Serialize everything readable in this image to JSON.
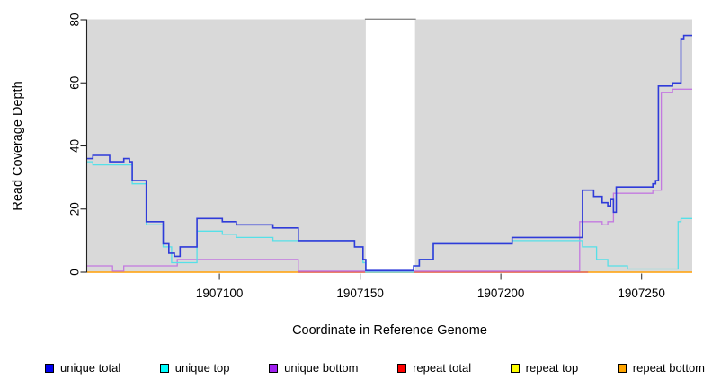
{
  "chart_data": {
    "type": "line",
    "subtype": "step-coverage-plot",
    "title": "",
    "xlabel": "Coordinate in Reference Genome",
    "ylabel": "Read Coverage Depth",
    "xlim": [
      1907053,
      1907268
    ],
    "ylim": [
      0,
      80
    ],
    "x_ticks": [
      1907100,
      1907150,
      1907200,
      1907250
    ],
    "y_ticks": [
      0,
      20,
      40,
      60,
      80
    ],
    "grid": false,
    "legend_position": "bottom",
    "background_color": "#FFFFFF",
    "plot_bg_color": "#D9D9D9",
    "no_data_gap": {
      "from": 1907152,
      "to": 1907169.5,
      "color": "#FFFFFF",
      "top_border_color": "#8A8A8A"
    },
    "axis_color": "#222222",
    "tick_label_color": "#000000",
    "series": [
      {
        "name": "repeat top",
        "color": "#FFFF33",
        "width": 1.2,
        "x_end": 1907268,
        "points": [
          [
            1907053,
            0
          ]
        ]
      },
      {
        "name": "repeat bottom",
        "color": "#FF9E15",
        "width": 1.5,
        "x_end": 1907268,
        "points": [
          [
            1907053,
            0
          ]
        ]
      },
      {
        "name": "repeat total",
        "color": "#DE5664",
        "width": 1.3,
        "x_end": 1907231,
        "points": [
          [
            1907128,
            0
          ]
        ]
      },
      {
        "name": "unique bottom",
        "color": "#C379E0",
        "width": 1.3,
        "x_end": 1907268,
        "points": [
          [
            1907053,
            2
          ],
          [
            1907062,
            0.3
          ],
          [
            1907066,
            2
          ],
          [
            1907085,
            4
          ],
          [
            1907128,
            0.3
          ],
          [
            1907228,
            16
          ],
          [
            1907236,
            15
          ],
          [
            1907238,
            16
          ],
          [
            1907240,
            25
          ],
          [
            1907254,
            26
          ],
          [
            1907257,
            57
          ],
          [
            1907261,
            58
          ]
        ]
      },
      {
        "name": "unique top",
        "color": "#55E0E8",
        "width": 1.3,
        "x_end": 1907268,
        "points": [
          [
            1907053,
            35
          ],
          [
            1907055,
            34
          ],
          [
            1907069,
            28
          ],
          [
            1907074,
            15
          ],
          [
            1907080,
            8
          ],
          [
            1907083,
            3
          ],
          [
            1907092,
            13
          ],
          [
            1907101,
            12
          ],
          [
            1907106,
            11
          ],
          [
            1907119,
            10
          ],
          [
            1907148,
            8
          ],
          [
            1907151,
            3
          ],
          [
            1907152,
            0
          ],
          [
            1907169,
            2
          ],
          [
            1907171,
            4
          ],
          [
            1907176,
            9
          ],
          [
            1907204,
            10
          ],
          [
            1907229,
            8
          ],
          [
            1907234,
            4
          ],
          [
            1907238,
            2
          ],
          [
            1907245,
            1
          ],
          [
            1907263,
            16
          ],
          [
            1907264,
            17
          ]
        ]
      },
      {
        "name": "unique total",
        "color": "#2F3BD9",
        "width": 1.6,
        "x_end": 1907268,
        "points": [
          [
            1907053,
            36
          ],
          [
            1907055,
            37
          ],
          [
            1907061,
            35
          ],
          [
            1907066,
            36
          ],
          [
            1907068,
            35
          ],
          [
            1907069,
            29
          ],
          [
            1907074,
            16
          ],
          [
            1907080,
            9
          ],
          [
            1907082,
            6
          ],
          [
            1907084,
            5
          ],
          [
            1907086,
            8
          ],
          [
            1907092,
            17
          ],
          [
            1907101,
            16
          ],
          [
            1907106,
            15
          ],
          [
            1907119,
            14
          ],
          [
            1907128,
            10
          ],
          [
            1907148,
            8
          ],
          [
            1907151,
            4
          ],
          [
            1907152,
            0.5
          ],
          [
            1907169,
            2
          ],
          [
            1907171,
            4
          ],
          [
            1907176,
            9
          ],
          [
            1907204,
            11
          ],
          [
            1907229,
            26
          ],
          [
            1907233,
            24
          ],
          [
            1907236,
            22
          ],
          [
            1907238,
            21
          ],
          [
            1907239,
            23
          ],
          [
            1907240,
            19
          ],
          [
            1907241,
            27
          ],
          [
            1907254,
            28
          ],
          [
            1907255,
            29
          ],
          [
            1907256,
            59
          ],
          [
            1907261,
            60
          ],
          [
            1907264,
            74
          ],
          [
            1907265,
            75
          ]
        ]
      }
    ],
    "legend": [
      {
        "label": "unique total",
        "color": "#0000EE"
      },
      {
        "label": "unique top",
        "color": "#00FFFF"
      },
      {
        "label": "unique bottom",
        "color": "#A020F0"
      },
      {
        "label": "repeat total",
        "color": "#FF0000"
      },
      {
        "label": "repeat top",
        "color": "#FFFF00"
      },
      {
        "label": "repeat bottom",
        "color": "#FFA500"
      }
    ]
  }
}
